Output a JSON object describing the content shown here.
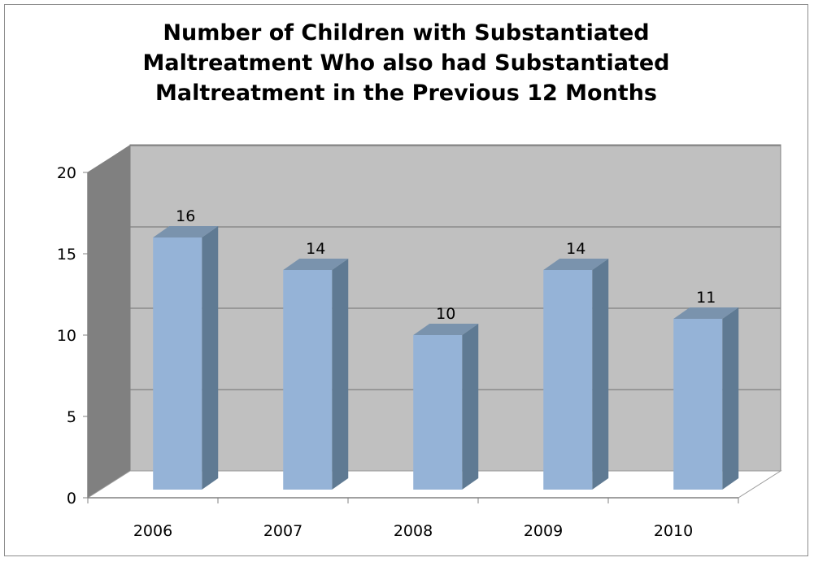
{
  "chart_data": {
    "type": "bar",
    "title_lines": [
      "Number of Children with Substantiated",
      "Maltreatment Who also had Substantiated",
      "Maltreatment in the Previous 12 Months"
    ],
    "categories": [
      "2006",
      "2007",
      "2008",
      "2009",
      "2010"
    ],
    "values": [
      16,
      14,
      10,
      14,
      11
    ],
    "data_labels": [
      "16",
      "14",
      "10",
      "14",
      "11"
    ],
    "ylim": [
      0,
      20
    ],
    "yticks": [
      "0",
      "5",
      "10",
      "15",
      "20"
    ],
    "grid": true,
    "legend": "none",
    "colors": {
      "bar_front": "#95b3d7",
      "bar_side": "#5f7a93",
      "bar_top": "#7a93ad",
      "back_wall": "#c0c0c0",
      "side_wall": "#808080",
      "floor": "#ffffff",
      "gridline": "#808080"
    }
  }
}
